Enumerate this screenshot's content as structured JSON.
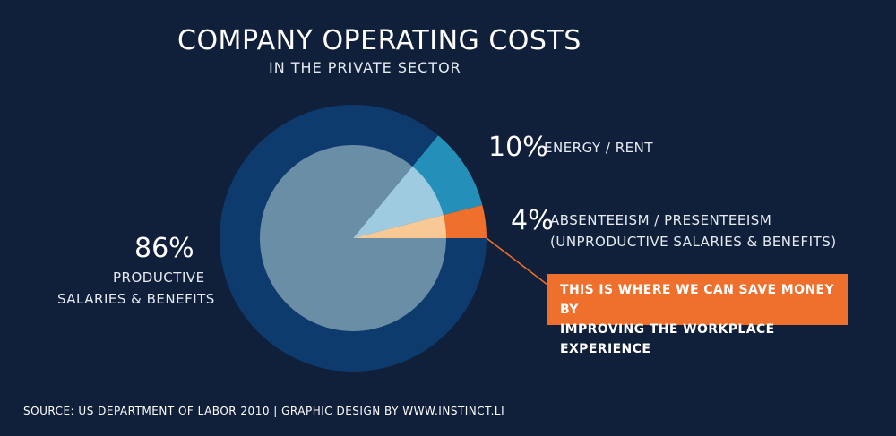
{
  "header": {
    "title": "COMPANY OPERATING COSTS",
    "subtitle": "IN THE PRIVATE SECTOR"
  },
  "chart_data": {
    "type": "pie",
    "title": "COMPANY OPERATING COSTS",
    "subtitle": "IN THE PRIVATE SECTOR",
    "slices": [
      {
        "percent_label": "86%",
        "value": 86,
        "label_lines": [
          "PRODUCTIVE",
          "SALARIES & BENEFITS"
        ],
        "outer_color": "#0e3b6e",
        "inner_color": "#6a8ea5",
        "percent_color": "#2b79c2"
      },
      {
        "percent_label": "10%",
        "value": 10,
        "label_lines": [
          "ENERGY / RENT"
        ],
        "outer_color": "#2490b9",
        "inner_color": "#9fcbe1",
        "percent_color": "#2aa0d0"
      },
      {
        "percent_label": "4%",
        "value": 4,
        "label_lines": [
          "ABSENTEEISM / PRESENTEEISM",
          "(UNPRODUCTIVE SALARIES & BENEFITS)"
        ],
        "outer_color": "#ef6f2c",
        "inner_color": "#f8c895",
        "percent_color": "#ef6f2c"
      }
    ],
    "legend": "none",
    "callout_lines": [
      "THIS IS WHERE WE CAN SAVE MONEY BY",
      "IMPROVING THE WORKPLACE EXPERIENCE"
    ]
  },
  "footer": {
    "source": "SOURCE: US DEPARTMENT OF LABOR 2010  |  GRAPHIC DESIGN BY WWW.INSTINCT.LI"
  }
}
